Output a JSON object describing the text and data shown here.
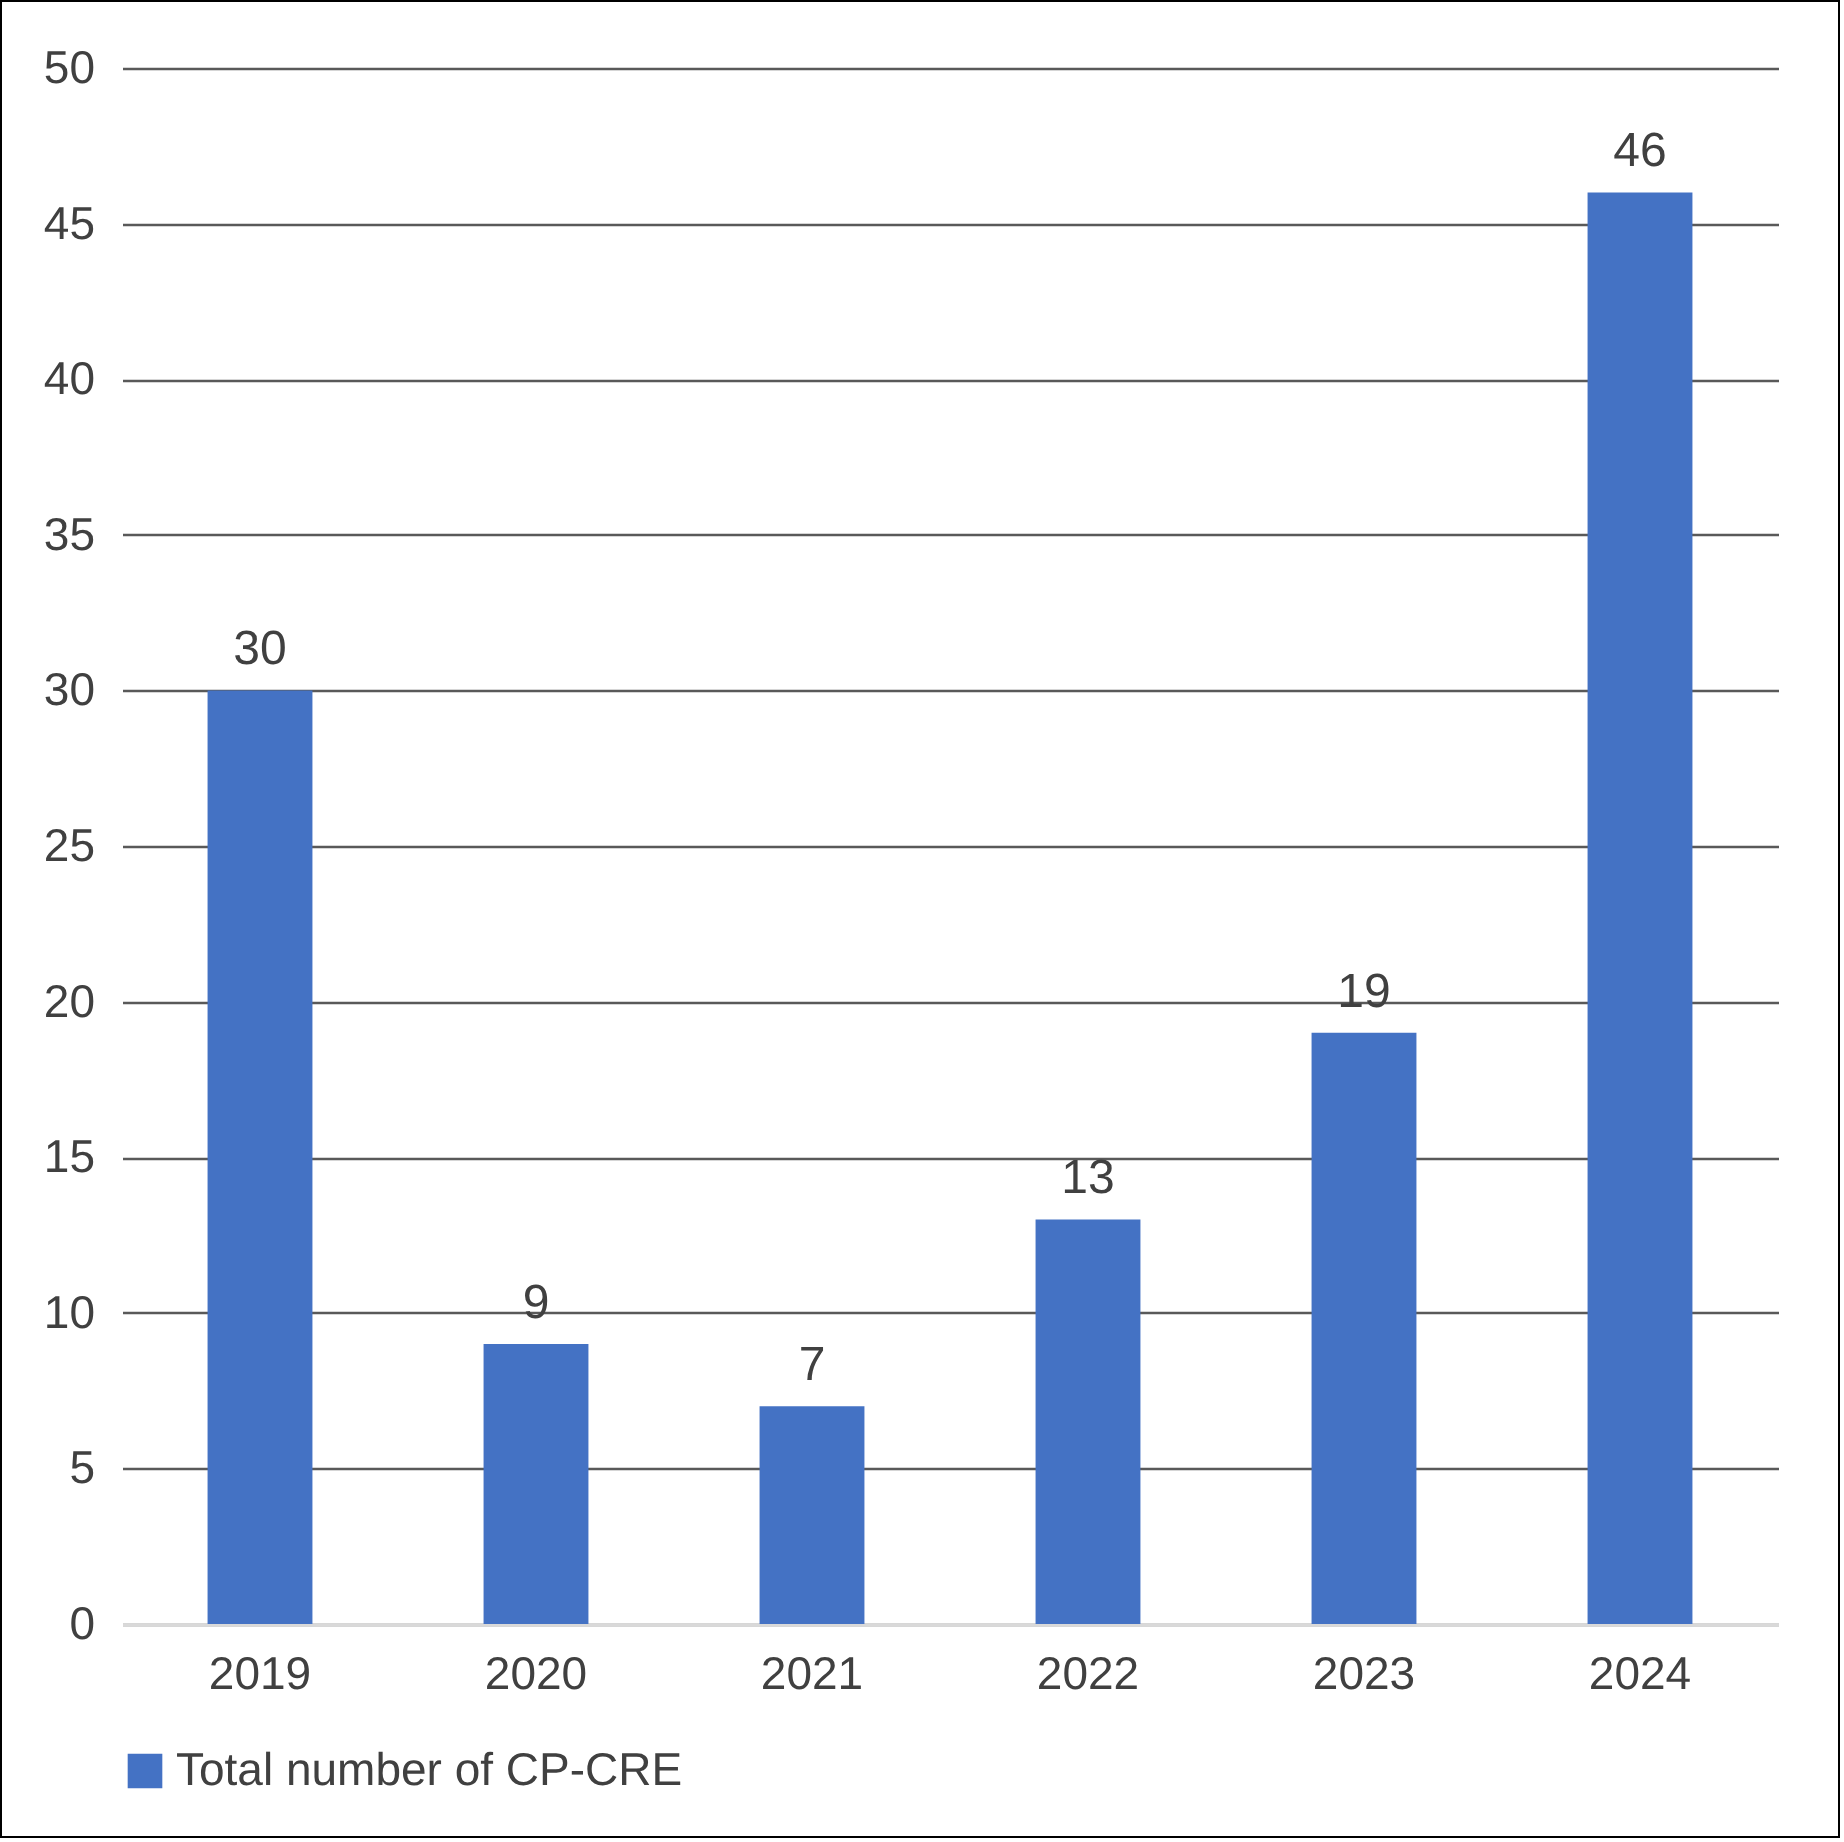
{
  "chart_data": {
    "type": "bar",
    "categories": [
      "2019",
      "2020",
      "2021",
      "2022",
      "2023",
      "2024"
    ],
    "series": [
      {
        "name": "Total number of CP-CRE",
        "color": "#4472c4",
        "values": [
          30,
          9,
          7,
          13,
          19,
          46
        ]
      }
    ],
    "ylim": [
      0,
      50
    ],
    "yticks": [
      0,
      5,
      10,
      15,
      20,
      25,
      30,
      35,
      40,
      45,
      50
    ],
    "grid": "y",
    "legend": "bottom",
    "data_labels": true
  }
}
